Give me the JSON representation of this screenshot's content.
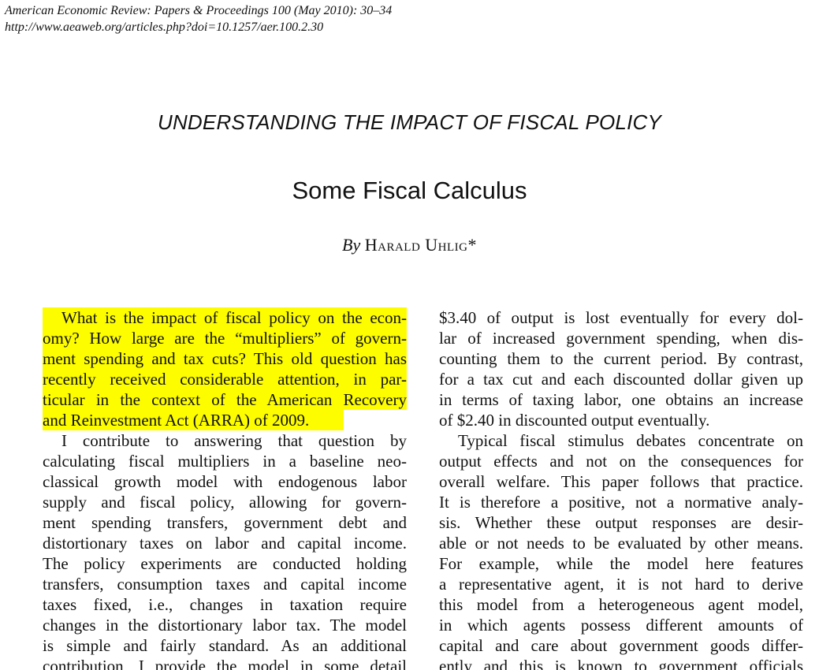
{
  "header": {
    "citation": "American Economic Review: Papers & Proceedings 100 (May 2010): 30–34",
    "url": "http://www.aeaweb.org/articles.php?doi=10.1257/aer.100.2.30"
  },
  "section_heading": "UNDERSTANDING THE IMPACT OF FISCAL POLICY",
  "title": "Some Fiscal Calculus",
  "byline": {
    "by": "By",
    "author": "Harald Uhlig*"
  },
  "highlight_color": "#fdfd00",
  "left_column": {
    "lines": [
      "What is the impact of fiscal policy on the econ-",
      "omy? How large are the “multipliers” of govern-",
      "ment spending and tax cuts? This old question has",
      "recently received considerable attention, in par-",
      "ticular in the context of the American Recovery",
      "and Reinvestment Act (ARRA) of 2009.",
      "I contribute to answering that question by",
      "calculating fiscal multipliers in a baseline neo-",
      "classical growth model with endogenous labor",
      "supply and fiscal policy, allowing for govern-",
      "ment spending transfers, government debt and",
      "distortionary taxes on labor and capital income.",
      "The policy experiments are conducted holding",
      "transfers, consumption taxes and capital income",
      "taxes fixed, i.e., changes in taxation require",
      "changes in the distortionary labor tax. The model",
      "is simple and fairly standard. As an additional",
      "contribution, I provide the model in some detail"
    ]
  },
  "right_column": {
    "lines": [
      "$3.40 of output is lost eventually for every dol-",
      "lar of increased government spending, when dis-",
      "counting them to the current period. By contrast,",
      "for a tax cut and each discounted dollar given up",
      "in terms of taxing labor, one obtains an increase",
      "of $2.40 in discounted output eventually.",
      "Typical fiscal stimulus debates concentrate on",
      "output effects and not on the consequences for",
      "overall welfare. This paper follows that practice.",
      "It is therefore a positive, not a normative analy-",
      "sis. Whether these output responses are desir-",
      "able or not needs to be evaluated by other means.",
      "For example, while the model here features",
      "a representative agent, it is not hard to derive",
      "this model from a heterogeneous agent model,",
      "in which agents possess different amounts of",
      "capital and care about government goods differ-",
      "ently and this is known to government officials"
    ]
  }
}
